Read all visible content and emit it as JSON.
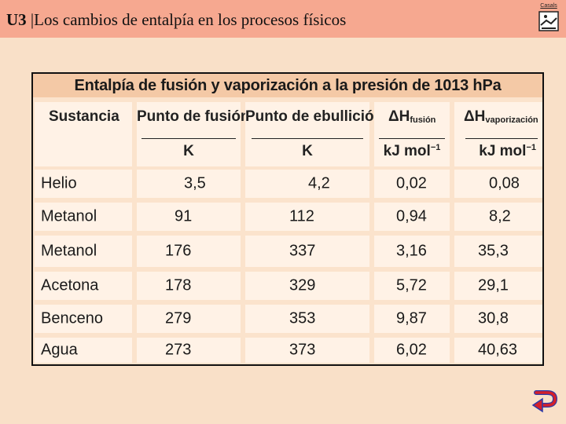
{
  "header": {
    "unit": "U3",
    "separator": "|",
    "title": "Los cambios de entalpía en los procesos físicos",
    "logo_label": "Casals"
  },
  "table": {
    "title": "Entalpía de fusión y vaporización a la presión de 1013 hPa",
    "columns": [
      {
        "label": "Sustancia",
        "unit": ""
      },
      {
        "label": "Punto de fusión",
        "unit": "K"
      },
      {
        "label": "Punto de ebullición",
        "unit": "K"
      },
      {
        "label": "ΔH",
        "sub": "fusión",
        "unit": "kJ mol",
        "unit_exp": "−1"
      },
      {
        "label": "ΔH",
        "sub": "vaporización",
        "unit": "kJ mol",
        "unit_exp": "−1"
      }
    ],
    "rows": [
      {
        "name": "Helio",
        "fusion": "3,5",
        "ebullicion": "4,2",
        "dh_fus": "0,02",
        "dh_vap": "0,08"
      },
      {
        "name": "Metanol",
        "fusion": "91",
        "ebullicion": "112",
        "dh_fus": "0,94",
        "dh_vap": "8,2"
      },
      {
        "name": "Metanol",
        "fusion": "176",
        "ebullicion": "337",
        "dh_fus": "3,16",
        "dh_vap": "35,3"
      },
      {
        "name": "Acetona",
        "fusion": "178",
        "ebullicion": "329",
        "dh_fus": "5,72",
        "dh_vap": "29,1"
      },
      {
        "name": "Benceno",
        "fusion": "279",
        "ebullicion": "353",
        "dh_fus": "9,87",
        "dh_vap": "30,8"
      },
      {
        "name": "Agua",
        "fusion": "273",
        "ebullicion": "373",
        "dh_fus": "6,02",
        "dh_vap": "40,63"
      }
    ]
  },
  "icons": {
    "logo": "book-logo-icon",
    "back": "return-arrow-icon"
  },
  "colors": {
    "header_bar": "#f6a890",
    "background": "#f9e0c8",
    "table_title_bg": "#f4c9a6",
    "cell_bg": "#fff2e6",
    "arrow_red": "#d4202a",
    "arrow_blue": "#2a3aa8"
  }
}
